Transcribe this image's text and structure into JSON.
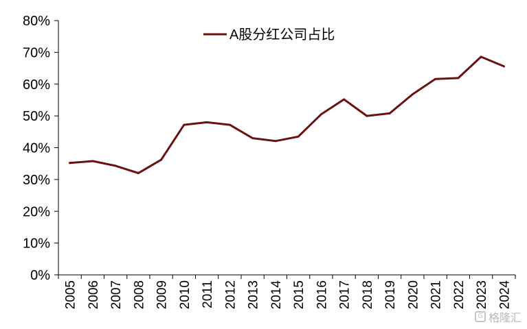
{
  "chart_data": {
    "type": "line",
    "title": "",
    "xlabel": "",
    "ylabel": "",
    "categories": [
      "2005",
      "2006",
      "2007",
      "2008",
      "2009",
      "2010",
      "2011",
      "2012",
      "2013",
      "2014",
      "2015",
      "2016",
      "2017",
      "2018",
      "2019",
      "2020",
      "2021",
      "2022",
      "2023",
      "2024"
    ],
    "series": [
      {
        "name": "A股分红公司占比",
        "color": "#6b1010",
        "values": [
          35.2,
          35.8,
          34.3,
          32.0,
          36.2,
          47.2,
          48.0,
          47.2,
          43.0,
          42.1,
          43.5,
          50.5,
          55.2,
          50.0,
          50.8,
          56.8,
          61.6,
          61.9,
          68.6,
          65.6
        ]
      }
    ],
    "ylim": [
      0,
      80
    ],
    "yticks": [
      0,
      10,
      20,
      30,
      40,
      50,
      60,
      70,
      80
    ],
    "ytick_labels": [
      "0%",
      "10%",
      "20%",
      "30%",
      "40%",
      "50%",
      "60%",
      "70%",
      "80%"
    ],
    "grid": false,
    "legend": "top-center"
  },
  "watermark": {
    "text": "格隆汇",
    "icon": "logo-icon"
  }
}
